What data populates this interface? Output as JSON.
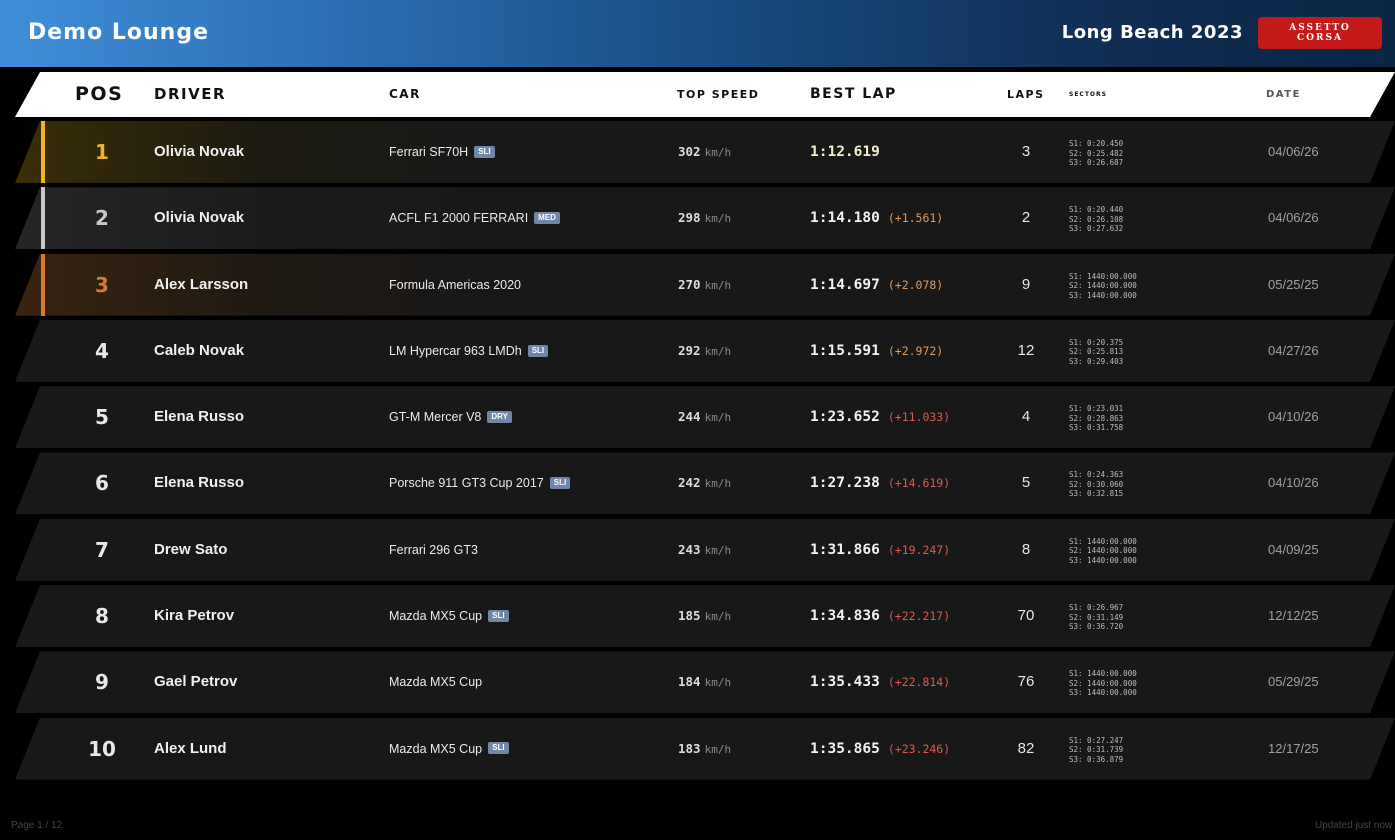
{
  "app": {
    "title": "Demo Lounge",
    "track": "Long Beach 2023",
    "logo_line1": "ASSETTO",
    "logo_line2": "CORSA"
  },
  "header": {
    "pos": "POS",
    "driver": "DRIVER",
    "car": "CAR",
    "top_speed": "TOP SPEED",
    "best_lap": "BEST LAP",
    "laps": "LAPS",
    "sectors": "SECTORS",
    "date": "DATE"
  },
  "colors": {
    "gold": "#f0b429",
    "silver": "#c8c8c8",
    "bronze": "#d77a35",
    "gap_orange": "#e39a5a",
    "gap_red": "#e0584f"
  },
  "rows": [
    {
      "pos": "1",
      "driver": "Olivia Novak",
      "car": "Ferrari SF70H",
      "tag": "SLI",
      "speed": "302",
      "unit": "km/h",
      "lap": "1:12.619",
      "gap": "",
      "laps": "3",
      "s1": "S1: 0:20.450",
      "s2": "S2: 0:25.482",
      "s3": "S3: 0:26.687",
      "date": "04/06/26"
    },
    {
      "pos": "2",
      "driver": "Olivia Novak",
      "car": "ACFL F1 2000 FERRARI",
      "tag": "MED",
      "speed": "298",
      "unit": "km/h",
      "lap": "1:14.180",
      "gap": "(+1.561)",
      "laps": "2",
      "s1": "S1: 0:20.440",
      "s2": "S2: 0:26.108",
      "s3": "S3: 0:27.632",
      "date": "04/06/26"
    },
    {
      "pos": "3",
      "driver": "Alex Larsson",
      "car": "Formula Americas 2020",
      "tag": "",
      "speed": "270",
      "unit": "km/h",
      "lap": "1:14.697",
      "gap": "(+2.078)",
      "laps": "9",
      "s1": "S1: 1440:00.000",
      "s2": "S2: 1440:00.000",
      "s3": "S3: 1440:00.000",
      "date": "05/25/25"
    },
    {
      "pos": "4",
      "driver": "Caleb Novak",
      "car": "LM Hypercar 963 LMDh",
      "tag": "SLI",
      "speed": "292",
      "unit": "km/h",
      "lap": "1:15.591",
      "gap": "(+2.972)",
      "laps": "12",
      "s1": "S1: 0:20.375",
      "s2": "S2: 0:25.813",
      "s3": "S3: 0:29.403",
      "date": "04/27/26"
    },
    {
      "pos": "5",
      "driver": "Elena Russo",
      "car": "GT-M Mercer V8",
      "tag": "DRY",
      "speed": "244",
      "unit": "km/h",
      "lap": "1:23.652",
      "gap": "(+11.033)",
      "laps": "4",
      "s1": "S1: 0:23.031",
      "s2": "S2: 0:28.863",
      "s3": "S3: 0:31.758",
      "date": "04/10/26"
    },
    {
      "pos": "6",
      "driver": "Elena Russo",
      "car": "Porsche 911 GT3 Cup 2017",
      "tag": "SLI",
      "speed": "242",
      "unit": "km/h",
      "lap": "1:27.238",
      "gap": "(+14.619)",
      "laps": "5",
      "s1": "S1: 0:24.363",
      "s2": "S2: 0:30.060",
      "s3": "S3: 0:32.815",
      "date": "04/10/26"
    },
    {
      "pos": "7",
      "driver": "Drew Sato",
      "car": "Ferrari 296 GT3",
      "tag": "",
      "speed": "243",
      "unit": "km/h",
      "lap": "1:31.866",
      "gap": "(+19.247)",
      "laps": "8",
      "s1": "S1: 1440:00.000",
      "s2": "S2: 1440:00.000",
      "s3": "S3: 1440:00.000",
      "date": "04/09/25"
    },
    {
      "pos": "8",
      "driver": "Kira Petrov",
      "car": "Mazda MX5 Cup",
      "tag": "SLI",
      "speed": "185",
      "unit": "km/h",
      "lap": "1:34.836",
      "gap": "(+22.217)",
      "laps": "70",
      "s1": "S1: 0:26.967",
      "s2": "S2: 0:31.149",
      "s3": "S3: 0:36.720",
      "date": "12/12/25"
    },
    {
      "pos": "9",
      "driver": "Gael Petrov",
      "car": "Mazda MX5 Cup",
      "tag": "",
      "speed": "184",
      "unit": "km/h",
      "lap": "1:35.433",
      "gap": "(+22.814)",
      "laps": "76",
      "s1": "S1: 1440:00.000",
      "s2": "S2: 1440:00.000",
      "s3": "S3: 1440:00.000",
      "date": "05/29/25"
    },
    {
      "pos": "10",
      "driver": "Alex Lund",
      "car": "Mazda MX5 Cup",
      "tag": "SLI",
      "speed": "183",
      "unit": "km/h",
      "lap": "1:35.865",
      "gap": "(+23.246)",
      "laps": "82",
      "s1": "S1: 0:27.247",
      "s2": "S2: 0:31.739",
      "s3": "S3: 0:36.879",
      "date": "12/17/25"
    }
  ],
  "footer": {
    "page": "Page 1 / 12",
    "updated": "Updated just now"
  }
}
